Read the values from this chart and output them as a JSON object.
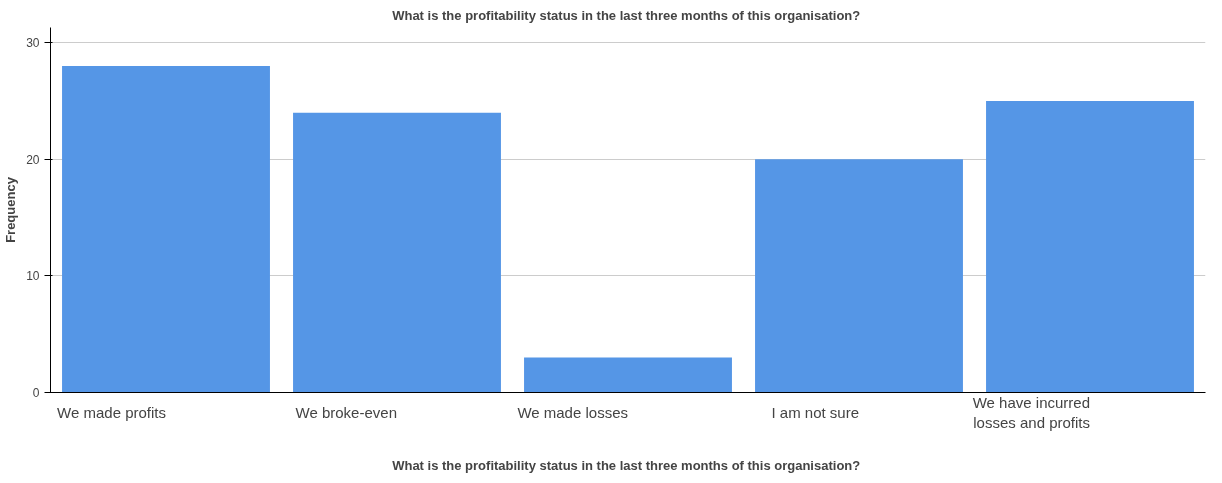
{
  "chart_data": {
    "type": "bar",
    "title": "What is the  profitability status in the last three months of this organisation?",
    "xlabel": "What is the  profitability status in the last three months of this organisation?",
    "ylabel": "Frequency",
    "categories": [
      "We made profits",
      "We broke-even",
      "We made losses",
      "I am not sure",
      "We have incurred\nlosses and profits"
    ],
    "values": [
      28,
      24,
      3,
      20,
      25
    ],
    "color": "#5596e6",
    "ylim": [
      0,
      31.3
    ],
    "yticks": [
      0,
      10,
      20,
      30
    ],
    "grid": "y"
  }
}
